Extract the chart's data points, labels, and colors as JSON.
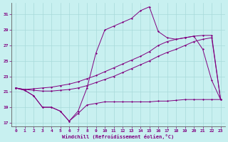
{
  "xlabel": "Windchill (Refroidissement éolien,°C)",
  "bg_color": "#c8f0f0",
  "line_color": "#800080",
  "grid_color": "#a8dada",
  "xlim": [
    -0.5,
    23.5
  ],
  "ylim": [
    16.5,
    32.5
  ],
  "yticks": [
    17,
    19,
    21,
    23,
    25,
    27,
    29,
    31
  ],
  "xticks": [
    0,
    1,
    2,
    3,
    4,
    5,
    6,
    7,
    8,
    9,
    10,
    11,
    12,
    13,
    14,
    15,
    16,
    17,
    18,
    19,
    20,
    21,
    22,
    23
  ],
  "series1_x": [
    0,
    1,
    2,
    3,
    4,
    5,
    6,
    7,
    8,
    9,
    10,
    11,
    12,
    13,
    14,
    15,
    16,
    17,
    18,
    19,
    20,
    21,
    22,
    23
  ],
  "series1_y": [
    21.5,
    21.2,
    20.5,
    19.0,
    19.0,
    18.5,
    17.2,
    18.2,
    19.3,
    19.5,
    19.7,
    19.7,
    19.7,
    19.7,
    19.7,
    19.7,
    19.8,
    19.8,
    19.9,
    20.0,
    20.0,
    20.0,
    20.0,
    20.0
  ],
  "series2_x": [
    0,
    1,
    2,
    3,
    4,
    5,
    6,
    7,
    8,
    9,
    10,
    11,
    12,
    13,
    14,
    15,
    16,
    17,
    18,
    19,
    20,
    21,
    22,
    23
  ],
  "series2_y": [
    21.5,
    21.3,
    21.2,
    21.1,
    21.1,
    21.2,
    21.3,
    21.5,
    21.8,
    22.2,
    22.6,
    23.0,
    23.5,
    24.0,
    24.5,
    25.0,
    25.6,
    26.1,
    26.5,
    27.0,
    27.5,
    27.8,
    28.0,
    20.0
  ],
  "series3_x": [
    0,
    1,
    2,
    3,
    4,
    5,
    6,
    7,
    8,
    9,
    10,
    11,
    12,
    13,
    14,
    15,
    16,
    17,
    18,
    19,
    20,
    21,
    22,
    23
  ],
  "series3_y": [
    21.5,
    21.3,
    21.4,
    21.5,
    21.6,
    21.8,
    22.0,
    22.3,
    22.7,
    23.1,
    23.6,
    24.1,
    24.6,
    25.1,
    25.6,
    26.2,
    27.0,
    27.5,
    27.8,
    28.0,
    28.2,
    28.3,
    28.3,
    20.0
  ],
  "series4_x": [
    0,
    1,
    2,
    3,
    4,
    5,
    6,
    7,
    8,
    9,
    10,
    11,
    12,
    13,
    14,
    15,
    16,
    17,
    18,
    19,
    20,
    21,
    22,
    23
  ],
  "series4_y": [
    21.5,
    21.2,
    20.5,
    19.0,
    19.0,
    18.5,
    17.2,
    18.5,
    21.5,
    26.0,
    29.0,
    29.5,
    30.0,
    30.5,
    31.5,
    32.0,
    28.8,
    28.0,
    27.8,
    28.0,
    28.2,
    26.5,
    22.5,
    20.0
  ]
}
